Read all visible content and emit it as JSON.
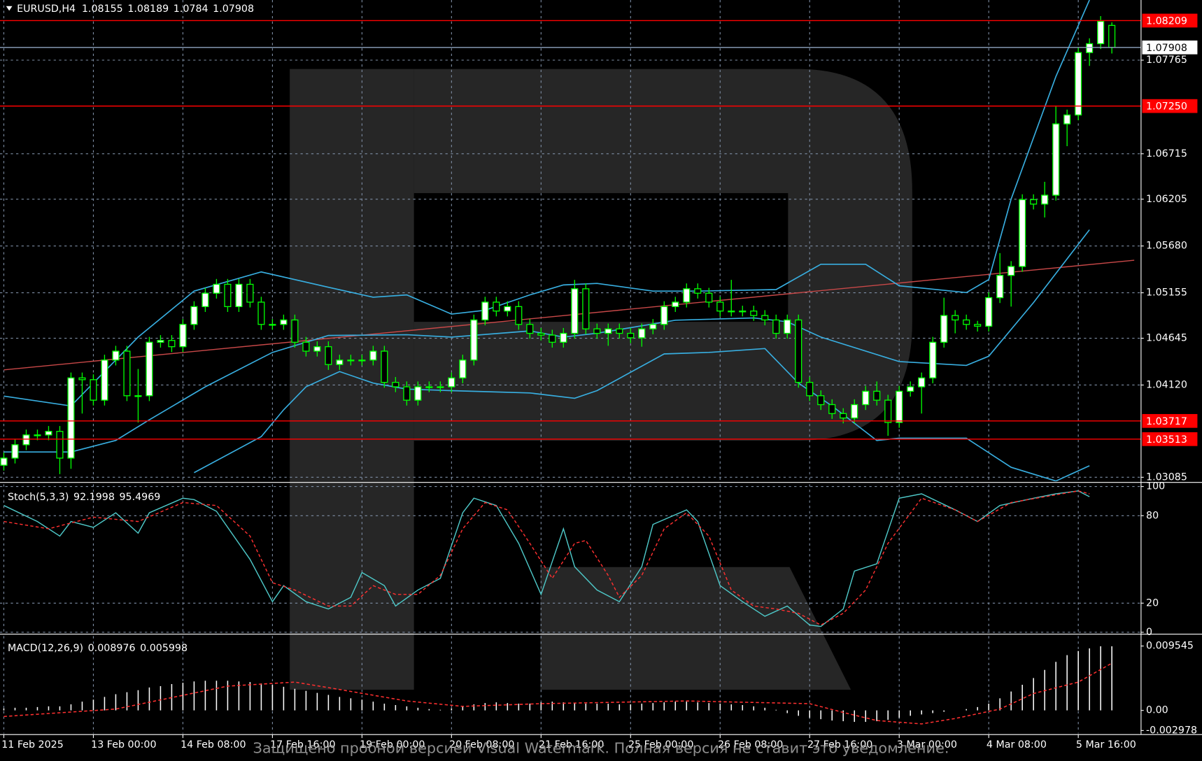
{
  "chart_data": [
    {
      "type": "candlestick",
      "title": "EURUSD,H4",
      "categories": [
        "11 Feb 2025",
        null,
        null,
        null,
        null,
        null,
        null,
        null,
        "13 Feb 00:00",
        null,
        null,
        null,
        null,
        null,
        null,
        null,
        "14 Feb 08:00",
        null,
        null,
        null,
        null,
        null,
        null,
        null,
        "17 Feb 16:00",
        null,
        null,
        null,
        null,
        null,
        null,
        null,
        "19 Feb 00:00",
        null,
        null,
        null,
        null,
        null,
        null,
        null,
        "20 Feb 08:00",
        null,
        null,
        null,
        null,
        null,
        null,
        null,
        "21 Feb 16:00",
        null,
        null,
        null,
        null,
        null,
        null,
        null,
        "25 Feb 00:00",
        null,
        null,
        null,
        null,
        null,
        null,
        null,
        "26 Feb 08:00",
        null,
        null,
        null,
        null,
        null,
        null,
        null,
        "27 Feb 16:00",
        null,
        null,
        null,
        null,
        null,
        null,
        null,
        "3 Mar 00:00",
        null,
        null,
        null,
        null,
        null,
        null,
        null,
        "4 Mar 08:00",
        null,
        null,
        null,
        null,
        null,
        null,
        null,
        "5 Mar 16:00",
        null,
        null,
        null
      ],
      "open": [
        1.0322,
        1.033,
        1.0345,
        1.0356,
        1.0356,
        1.036,
        1.033,
        1.042,
        1.0418,
        1.0395,
        1.044,
        1.045,
        1.04,
        1.04,
        1.046,
        1.0462,
        1.0455,
        1.048,
        1.05,
        1.0515,
        1.0525,
        1.05,
        1.0525,
        1.0505,
        1.048,
        1.048,
        1.0485,
        1.046,
        1.045,
        1.0455,
        1.0435,
        1.044,
        1.044,
        1.044,
        1.045,
        1.0415,
        1.041,
        1.0395,
        1.041,
        1.041,
        1.041,
        1.042,
        1.044,
        1.0485,
        1.0505,
        1.0495,
        1.05,
        1.048,
        1.047,
        1.0468,
        1.046,
        1.047,
        1.052,
        1.0475,
        1.047,
        1.0475,
        1.047,
        1.0465,
        1.0475,
        1.048,
        1.05,
        1.0505,
        1.052,
        1.0515,
        1.0505,
        1.0495,
        1.0495,
        1.0495,
        1.049,
        1.0485,
        1.047,
        1.0485,
        1.0415,
        1.04,
        1.039,
        1.038,
        1.0375,
        1.039,
        1.0405,
        1.0395,
        1.037,
        1.0405,
        1.041,
        1.042,
        1.046,
        1.049,
        1.0485,
        1.048,
        1.0478,
        1.051,
        1.0535,
        1.0545,
        1.062,
        1.0615,
        1.0625,
        1.0705,
        1.0715,
        1.0785,
        1.0795,
        1.08155
      ],
      "high": [
        1.0336,
        1.0351,
        1.0362,
        1.0362,
        1.0366,
        1.0366,
        1.0426,
        1.0426,
        1.0424,
        1.0446,
        1.0456,
        1.0456,
        1.043,
        1.0466,
        1.0468,
        1.0468,
        1.0486,
        1.0506,
        1.0521,
        1.0531,
        1.0531,
        1.0531,
        1.0531,
        1.0511,
        1.0486,
        1.0491,
        1.0491,
        1.0466,
        1.0461,
        1.0461,
        1.0446,
        1.0446,
        1.0446,
        1.0456,
        1.0456,
        1.0421,
        1.0416,
        1.0416,
        1.0416,
        1.0416,
        1.0426,
        1.0446,
        1.0491,
        1.0511,
        1.0511,
        1.0506,
        1.0506,
        1.0486,
        1.0476,
        1.0474,
        1.0476,
        1.053,
        1.0526,
        1.0481,
        1.0481,
        1.0481,
        1.0476,
        1.0481,
        1.0486,
        1.0506,
        1.0511,
        1.0526,
        1.0526,
        1.0521,
        1.0511,
        1.053,
        1.0501,
        1.0501,
        1.0496,
        1.0491,
        1.0491,
        1.0491,
        1.0421,
        1.0406,
        1.0396,
        1.0386,
        1.0396,
        1.0411,
        1.0416,
        1.0401,
        1.0411,
        1.0416,
        1.0426,
        1.0466,
        1.051,
        1.0496,
        1.0491,
        1.0484,
        1.0516,
        1.056,
        1.0551,
        1.0626,
        1.0626,
        1.064,
        1.0725,
        1.0721,
        1.0791,
        1.0801,
        1.0826,
        1.08189
      ],
      "low": [
        1.0316,
        1.0324,
        1.0339,
        1.035,
        1.035,
        1.0312,
        1.0318,
        1.038,
        1.0389,
        1.0389,
        1.0434,
        1.0394,
        1.037,
        1.0394,
        1.0454,
        1.0449,
        1.0449,
        1.0474,
        1.0494,
        1.0509,
        1.0494,
        1.0494,
        1.0499,
        1.0474,
        1.0474,
        1.0474,
        1.0454,
        1.0444,
        1.0444,
        1.0429,
        1.0429,
        1.0434,
        1.0434,
        1.0434,
        1.0409,
        1.0404,
        1.0389,
        1.0389,
        1.0404,
        1.0404,
        1.0404,
        1.0414,
        1.0434,
        1.0479,
        1.0489,
        1.0489,
        1.0474,
        1.0464,
        1.0462,
        1.0454,
        1.0454,
        1.0464,
        1.0469,
        1.0464,
        1.0456,
        1.0464,
        1.0459,
        1.0455,
        1.0469,
        1.0474,
        1.0494,
        1.0499,
        1.0509,
        1.0499,
        1.0489,
        1.0489,
        1.0489,
        1.0484,
        1.0479,
        1.0464,
        1.0464,
        1.0409,
        1.0394,
        1.0384,
        1.0374,
        1.0369,
        1.0369,
        1.0384,
        1.0389,
        1.0355,
        1.0364,
        1.0399,
        1.038,
        1.0414,
        1.0454,
        1.047,
        1.0474,
        1.0472,
        1.0472,
        1.0504,
        1.05,
        1.0539,
        1.0609,
        1.06,
        1.0619,
        1.068,
        1.0709,
        1.077,
        1.0789,
        1.0784
      ],
      "close": [
        1.033,
        1.0345,
        1.0356,
        1.0356,
        1.036,
        1.033,
        1.042,
        1.0418,
        1.0395,
        1.044,
        1.045,
        1.04,
        1.04,
        1.046,
        1.0462,
        1.0455,
        1.048,
        1.05,
        1.0515,
        1.0525,
        1.05,
        1.0525,
        1.0505,
        1.048,
        1.048,
        1.0485,
        1.046,
        1.045,
        1.0455,
        1.0435,
        1.044,
        1.044,
        1.044,
        1.045,
        1.0415,
        1.041,
        1.0395,
        1.041,
        1.041,
        1.041,
        1.042,
        1.044,
        1.0485,
        1.0505,
        1.0495,
        1.05,
        1.048,
        1.047,
        1.0468,
        1.046,
        1.047,
        1.052,
        1.0475,
        1.047,
        1.0475,
        1.047,
        1.0465,
        1.0475,
        1.048,
        1.05,
        1.0505,
        1.052,
        1.0515,
        1.0505,
        1.0495,
        1.0495,
        1.0495,
        1.049,
        1.0485,
        1.047,
        1.0485,
        1.0415,
        1.04,
        1.039,
        1.038,
        1.0375,
        1.039,
        1.0405,
        1.0395,
        1.037,
        1.0405,
        1.041,
        1.042,
        1.046,
        1.049,
        1.0485,
        1.048,
        1.0478,
        1.051,
        1.0535,
        1.0545,
        1.062,
        1.0615,
        1.0625,
        1.0705,
        1.0715,
        1.0785,
        1.0795,
        1.082,
        1.07908
      ],
      "bull_color": "#ffffff",
      "bear_color": "#000000",
      "candle_stroke": "#00ff00",
      "ylim": [
        1.0304,
        1.0844
      ],
      "yticks": [
        1.07765,
        1.06715,
        1.06205,
        {
          "value": 1.0568,
          "label": "1.05680"
        },
        1.05155,
        1.04645,
        {
          "value": 1.0412,
          "label": "1.04120"
        },
        1.03085
      ],
      "grid": true,
      "grid_color": "#7f8fa6",
      "levels": [
        1.08209,
        {
          "value": 1.0725,
          "label": "1.07250"
        },
        1.03717,
        1.03513
      ],
      "level_color": "#ff0000",
      "price_line_color": "#8fa4c0",
      "bands": {
        "color": "#38aee0",
        "upper": {
          "x": [
            0,
            6,
            12,
            17,
            23,
            29,
            33,
            36,
            40,
            43,
            47,
            50,
            53,
            58,
            62,
            69,
            73,
            77,
            80,
            86,
            88,
            90,
            94,
            97
          ],
          "values": [
            1.03996,
            1.03885,
            1.04658,
            1.05174,
            1.05389,
            1.05217,
            1.05105,
            1.05131,
            1.04916,
            1.04959,
            1.05131,
            1.05243,
            1.0526,
            1.05174,
            1.05174,
            1.05191,
            1.05475,
            1.05475,
            1.05234,
            1.05157,
            1.05303,
            1.06206,
            1.07581,
            1.0844
          ]
        },
        "middle": {
          "x": [
            0,
            6,
            10,
            13,
            18,
            24,
            29,
            36,
            40,
            47,
            50,
            53,
            60,
            67,
            70,
            73,
            80,
            86,
            88,
            92,
            97
          ],
          "values": [
            1.03369,
            1.03369,
            1.03498,
            1.0373,
            1.041,
            1.04486,
            1.04676,
            1.04684,
            1.04658,
            1.04727,
            1.04658,
            1.04701,
            1.04847,
            1.04873,
            1.0483,
            1.04658,
            1.04383,
            1.0434,
            1.04443,
            1.05045,
            1.05862
          ]
        },
        "lower": {
          "x": [
            17,
            23,
            25,
            27,
            30,
            33,
            36,
            40,
            47,
            51,
            53,
            59,
            63,
            68,
            71,
            74,
            78,
            80,
            86,
            90,
            94,
            97
          ],
          "values": [
            1.03137,
            1.03541,
            1.03842,
            1.041,
            1.04271,
            1.04142,
            1.04074,
            1.04057,
            1.04031,
            1.03971,
            1.04057,
            1.04469,
            1.04486,
            1.04529,
            1.04142,
            1.03885,
            1.03498,
            1.03524,
            1.03524,
            1.03197,
            1.03043,
            1.03214
          ]
        }
      },
      "trendline": {
        "x": [
          0,
          101
        ],
        "values": [
          1.0429,
          1.0552
        ],
        "color": "#c84848"
      }
    },
    {
      "type": "line",
      "title": "Stoch(5,3,3)",
      "last_values": [
        92.1998,
        95.4969
      ],
      "ylim": [
        -0.5,
        101.5
      ],
      "yticks": [
        100,
        80,
        20,
        0
      ],
      "grid": true,
      "grid_color": "#7f8fa6",
      "series": [
        {
          "color": "#4ec8c8",
          "x": [
            0,
            3,
            5,
            6,
            8,
            10,
            12,
            13,
            16,
            17,
            19,
            22,
            24,
            25,
            27,
            29,
            31,
            32,
            34,
            35,
            37,
            39,
            41,
            42,
            44,
            46,
            48,
            50,
            51,
            53,
            55,
            57,
            58,
            61,
            62,
            64,
            66,
            68,
            70,
            72,
            73,
            75,
            76,
            78,
            80,
            82,
            85,
            87,
            89,
            92,
            94,
            96,
            97
          ],
          "values": [
            87,
            76,
            66,
            76,
            72,
            82,
            68,
            82,
            92,
            91,
            83,
            50,
            21,
            32,
            21,
            16,
            24,
            41,
            32,
            18,
            29,
            37,
            82,
            92,
            87,
            61,
            26,
            71,
            45,
            29,
            21,
            45,
            74,
            84,
            76,
            32,
            21,
            11,
            18,
            5,
            4,
            16,
            42,
            47,
            92,
            95,
            84,
            76,
            87,
            92,
            95,
            97,
            93
          ]
        },
        {
          "color": "#ff3030",
          "dashed": true,
          "x": [
            0,
            4,
            8,
            12,
            16,
            19,
            22,
            24,
            26,
            29,
            31,
            33,
            35,
            37,
            39,
            41,
            43,
            45,
            47,
            49,
            51,
            52,
            54,
            55,
            57,
            59,
            61,
            63,
            65,
            67,
            69,
            71,
            73,
            75,
            77,
            79,
            82,
            85,
            87,
            90,
            93,
            96,
            97
          ],
          "values": [
            76,
            71,
            79,
            76,
            89,
            87,
            66,
            34,
            29,
            18,
            18,
            32,
            26,
            26,
            39,
            71,
            89,
            84,
            61,
            37,
            61,
            63,
            39,
            24,
            39,
            71,
            82,
            66,
            29,
            18,
            16,
            13,
            5,
            13,
            29,
            61,
            92,
            84,
            76,
            89,
            93,
            97,
            95
          ]
        }
      ]
    },
    {
      "type": "macd",
      "title": "MACD(12,26,9)",
      "last_values": [
        0.008976,
        0.005998
      ],
      "ylim": [
        -0.00341,
        0.01102
      ],
      "yticks": [
        0.009545,
        {
          "value": 0,
          "label": "0.00"
        },
        -0.002978
      ],
      "histogram": {
        "color": "#ffffff",
        "values": [
          0.0003,
          0.0004,
          0.0004,
          0.0005,
          0.0006,
          0.0006,
          0.0009,
          0.0013,
          0.0016,
          0.002,
          0.0024,
          0.0027,
          0.003,
          0.0034,
          0.0036,
          0.0039,
          0.0041,
          0.0043,
          0.0044,
          0.0044,
          0.0044,
          0.0043,
          0.0042,
          0.004,
          0.0038,
          0.0035,
          0.0032,
          0.0029,
          0.0026,
          0.0023,
          0.002,
          0.0018,
          0.0016,
          0.0013,
          0.001,
          0.0008,
          0.0006,
          0.0004,
          0.0002,
          0.0001,
          0.0003,
          0.0006,
          0.0009,
          0.0011,
          0.0012,
          0.0011,
          0.001,
          0.001,
          0.0012,
          0.0013,
          0.0012,
          0.0011,
          0.001,
          0.001,
          0.001,
          0.0009,
          0.0009,
          0.001,
          0.0011,
          0.0012,
          0.0013,
          0.0013,
          0.0012,
          0.0011,
          0.001,
          0.0009,
          0.0008,
          0.0006,
          0.0004,
          0.0001,
          -0.0004,
          -0.0008,
          -0.0011,
          -0.0013,
          -0.0015,
          -0.0016,
          -0.0017,
          -0.0017,
          -0.0016,
          -0.0014,
          -0.0011,
          -0.0008,
          -0.0006,
          -0.0004,
          -0.0002,
          0.0,
          0.0002,
          0.0005,
          0.001,
          0.0018,
          0.0028,
          0.0038,
          0.0048,
          0.006,
          0.0072,
          0.0082,
          0.0088,
          0.0092,
          0.0095,
          0.0095
        ]
      },
      "signal": {
        "color": "#ff3030",
        "x": [
          0,
          10,
          20,
          26,
          30,
          36,
          41,
          48,
          61,
          72,
          75,
          78,
          82,
          85,
          89,
          92,
          96,
          99
        ],
        "values": [
          -0.0009,
          0.0002,
          0.0036,
          0.0042,
          0.0031,
          0.0014,
          0.0006,
          0.001,
          0.0014,
          0.001,
          -0.0003,
          -0.0015,
          -0.002,
          -0.0012,
          0.0002,
          0.0025,
          0.0042,
          0.007
        ]
      }
    }
  ],
  "watermark": "Защищено пробной версией Visual Watermark. Полная версия не ставит это уведомление."
}
